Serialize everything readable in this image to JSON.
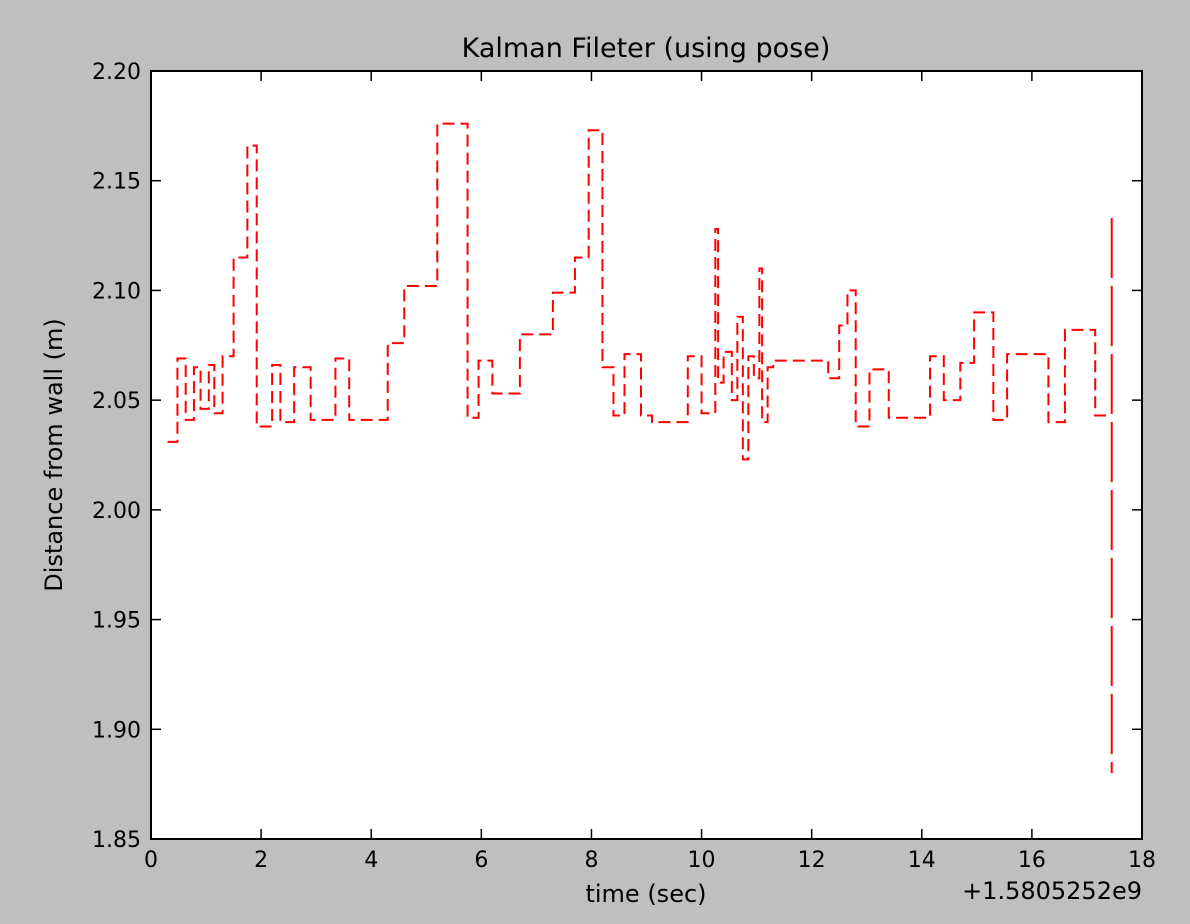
{
  "chart_data": {
    "type": "line",
    "title": "Kalman Fileter (using pose)",
    "xlabel": "time (sec)",
    "ylabel": "Distance from wall (m)",
    "x_offset_label": "+1.5805252e9",
    "xlim": [
      0,
      18
    ],
    "ylim": [
      1.85,
      2.2
    ],
    "x_ticks": [
      0,
      2,
      4,
      6,
      8,
      10,
      12,
      14,
      16,
      18
    ],
    "x_tick_labels": [
      "0",
      "2",
      "4",
      "6",
      "8",
      "10",
      "12",
      "14",
      "16",
      "18"
    ],
    "y_ticks": [
      1.85,
      1.9,
      1.95,
      2.0,
      2.05,
      2.1,
      2.15,
      2.2
    ],
    "y_tick_labels": [
      "1.85",
      "1.90",
      "1.95",
      "2.00",
      "2.05",
      "2.10",
      "2.15",
      "2.20"
    ],
    "grid": false,
    "line_style": "steps-post dashed",
    "line_color": "#ff0000",
    "background_color": "#bfbfbf",
    "plot_background_color": "#ffffff",
    "series": [
      {
        "x": [
          0.3,
          0.48,
          0.63,
          0.78,
          0.9,
          1.05,
          1.15,
          1.3,
          1.5,
          1.75,
          1.92,
          2.2,
          2.35,
          2.6,
          2.9,
          3.35,
          3.6,
          3.75,
          4.3,
          4.6,
          4.95,
          5.2,
          5.75,
          5.95,
          6.2,
          6.7,
          7.05,
          7.3,
          7.7,
          7.95,
          8.2,
          8.4,
          8.6,
          8.9,
          9.1,
          9.75,
          10.0,
          10.25,
          10.3,
          10.4,
          10.55,
          10.65,
          10.75,
          10.85,
          10.95,
          11.05,
          11.1,
          11.2,
          11.3,
          12.3,
          12.5,
          12.65,
          12.8,
          13.05,
          13.4,
          13.7,
          14.15,
          14.4,
          14.7,
          14.95,
          15.3,
          15.55,
          15.85,
          16.3,
          16.6,
          16.95,
          17.15,
          17.4
        ],
        "y": [
          2.031,
          2.069,
          2.041,
          2.065,
          2.046,
          2.066,
          2.044,
          2.07,
          2.115,
          2.166,
          2.038,
          2.066,
          2.04,
          2.065,
          2.041,
          2.069,
          2.041,
          2.041,
          2.076,
          2.102,
          2.102,
          2.176,
          2.042,
          2.068,
          2.053,
          2.08,
          2.08,
          2.099,
          2.115,
          2.173,
          2.065,
          2.043,
          2.071,
          2.043,
          2.04,
          2.07,
          2.044,
          2.128,
          2.058,
          2.072,
          2.05,
          2.088,
          2.023,
          2.07,
          2.06,
          2.11,
          2.04,
          2.065,
          2.068,
          2.06,
          2.084,
          2.1,
          2.038,
          2.064,
          2.042,
          2.042,
          2.07,
          2.05,
          2.067,
          2.09,
          2.041,
          2.071,
          2.071,
          2.04,
          2.082,
          2.082,
          2.043,
          2.043
        ]
      }
    ],
    "final_spike": {
      "x": 17.45,
      "y_min": 1.88,
      "y_max": 2.133
    }
  }
}
